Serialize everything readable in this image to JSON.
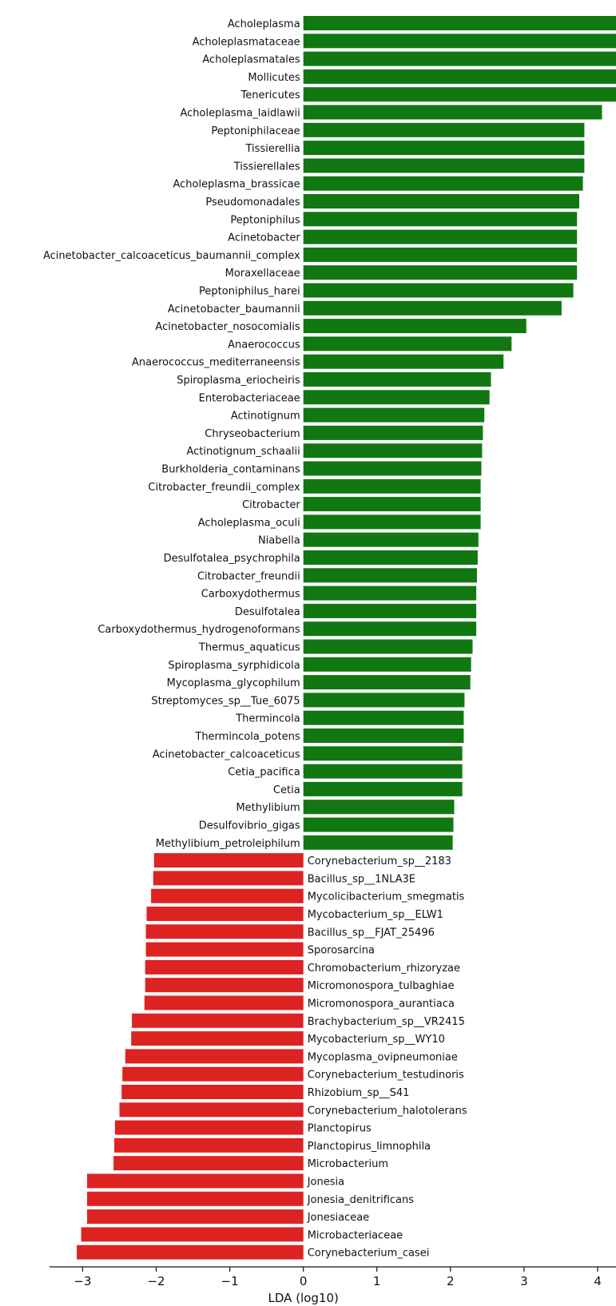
{
  "chart_data": {
    "type": "bar",
    "orientation": "horizontal",
    "xlabel": "LDA (log10)",
    "xlim": [
      -3.45,
      4.25
    ],
    "xticks": [
      -3,
      -2,
      -1,
      0,
      1,
      2,
      3,
      4
    ],
    "colors": {
      "positive": "#117711",
      "negative": "#dd2222"
    },
    "grid": false,
    "legend": "none",
    "categories": [
      "Acholeplasma",
      "Acholeplasmataceae",
      "Acholeplasmatales",
      "Mollicutes",
      "Tenericutes",
      "Acholeplasma_laidlawii",
      "Peptoniphilaceae",
      "Tissierellia",
      "Tissierellales",
      "Acholeplasma_brassicae",
      "Pseudomonadales",
      "Peptoniphilus",
      "Acinetobacter",
      "Acinetobacter_calcoaceticus_baumannii_complex",
      "Moraxellaceae",
      "Peptoniphilus_harei",
      "Acinetobacter_baumannii",
      "Acinetobacter_nosocomialis",
      "Anaerococcus",
      "Anaerococcus_mediterraneensis",
      "Spiroplasma_eriocheiris",
      "Enterobacteriaceae",
      "Actinotignum",
      "Chryseobacterium",
      "Actinotignum_schaalii",
      "Burkholderia_contaminans",
      "Citrobacter_freundii_complex",
      "Citrobacter",
      "Acholeplasma_oculi",
      "Niabella",
      "Desulfotalea_psychrophila",
      "Citrobacter_freundii",
      "Carboxydothermus",
      "Desulfotalea",
      "Carboxydothermus_hydrogenoformans",
      "Thermus_aquaticus",
      "Spiroplasma_syrphidicola",
      "Mycoplasma_glycophilum",
      "Streptomyces_sp__Tue_6075",
      "Thermincola",
      "Thermincola_potens",
      "Acinetobacter_calcoaceticus",
      "Cetia_pacifica",
      "Cetia",
      "Methylibium",
      "Desulfovibrio_gigas",
      "Methylibium_petroleiphilum",
      "Corynebacterium_sp__2183",
      "Bacillus_sp__1NLA3E",
      "Mycolicibacterium_smegmatis",
      "Mycobacterium_sp__ELW1",
      "Bacillus_sp__FJAT_25496",
      "Sporosarcina",
      "Chromobacterium_rhizoryzae",
      "Micromonospora_tulbaghiae",
      "Micromonospora_aurantiaca",
      "Brachybacterium_sp__VR2415",
      "Mycobacterium_sp__WY10",
      "Mycoplasma_ovipneumoniae",
      "Corynebacterium_testudinoris",
      "Rhizobium_sp__S41",
      "Corynebacterium_halotolerans",
      "Planctopirus",
      "Planctopirus_limnophila",
      "Microbacterium",
      "Jonesia",
      "Jonesia_denitrificans",
      "Jonesiaceae",
      "Microbacteriaceae",
      "Corynebacterium_casei"
    ],
    "values": [
      4.3,
      4.3,
      4.3,
      4.3,
      4.3,
      4.06,
      3.82,
      3.82,
      3.82,
      3.8,
      3.75,
      3.72,
      3.72,
      3.72,
      3.72,
      3.67,
      3.51,
      3.03,
      2.83,
      2.72,
      2.55,
      2.53,
      2.46,
      2.44,
      2.43,
      2.42,
      2.41,
      2.41,
      2.41,
      2.38,
      2.37,
      2.36,
      2.35,
      2.35,
      2.35,
      2.3,
      2.28,
      2.27,
      2.19,
      2.18,
      2.18,
      2.16,
      2.16,
      2.16,
      2.05,
      2.04,
      2.03,
      -2.03,
      -2.04,
      -2.07,
      -2.13,
      -2.14,
      -2.14,
      -2.15,
      -2.15,
      -2.16,
      -2.33,
      -2.34,
      -2.42,
      -2.46,
      -2.47,
      -2.5,
      -2.56,
      -2.57,
      -2.58,
      -2.94,
      -2.94,
      -2.94,
      -3.02,
      -3.08
    ]
  }
}
